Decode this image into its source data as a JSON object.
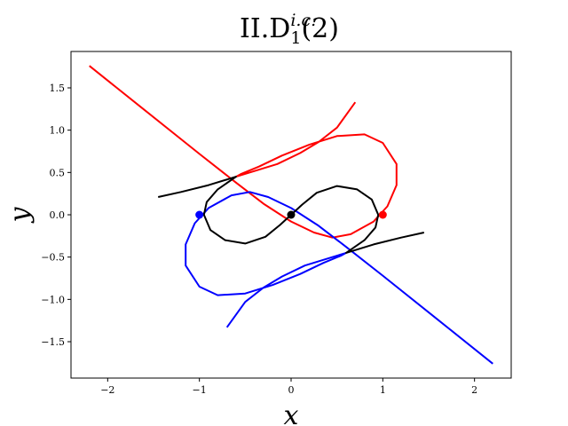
{
  "chart_data": {
    "type": "line",
    "title": {
      "prefix": "II.D",
      "subscript": "1",
      "superscript": "i.c.",
      "suffix": "(2)"
    },
    "xlabel": "x",
    "ylabel": "y",
    "xlim": [
      -2.4,
      2.4
    ],
    "ylim": [
      -1.93,
      1.93
    ],
    "xticks": [
      -2,
      -1,
      0,
      1,
      2
    ],
    "xtick_labels": [
      "−2",
      "−1",
      "0",
      "1",
      "2"
    ],
    "yticks": [
      -1.5,
      -1.0,
      -0.5,
      0.0,
      0.5,
      1.0,
      1.5
    ],
    "ytick_labels": [
      "−1.5",
      "−1.0",
      "−0.5",
      "0.0",
      "0.5",
      "1.0",
      "1.5"
    ],
    "grid": false,
    "series": [
      {
        "color": "#ff0000",
        "points": [
          [
            -2.2,
            1.76
          ],
          [
            -1.6,
            1.24
          ],
          [
            -1.0,
            0.72
          ],
          [
            -0.6,
            0.38
          ],
          [
            -0.3,
            0.13
          ],
          [
            0.0,
            -0.08
          ],
          [
            0.25,
            -0.21
          ],
          [
            0.45,
            -0.27
          ],
          [
            0.65,
            -0.23
          ],
          [
            0.9,
            -0.08
          ],
          [
            1.05,
            0.1
          ],
          [
            1.15,
            0.35
          ],
          [
            1.15,
            0.6
          ],
          [
            1.0,
            0.85
          ],
          [
            0.8,
            0.95
          ],
          [
            0.5,
            0.93
          ],
          [
            0.2,
            0.83
          ],
          [
            -0.1,
            0.7
          ],
          [
            -0.35,
            0.57
          ],
          [
            -0.55,
            0.48
          ],
          [
            -0.6,
            0.45
          ],
          [
            -0.45,
            0.5
          ],
          [
            -0.15,
            0.6
          ],
          [
            0.1,
            0.73
          ],
          [
            0.3,
            0.86
          ],
          [
            0.5,
            1.03
          ],
          [
            0.7,
            1.33
          ]
        ]
      },
      {
        "color": "#0000ff",
        "points": [
          [
            2.2,
            -1.76
          ],
          [
            1.6,
            -1.24
          ],
          [
            1.0,
            -0.72
          ],
          [
            0.6,
            -0.38
          ],
          [
            0.3,
            -0.13
          ],
          [
            0.0,
            0.08
          ],
          [
            -0.25,
            0.21
          ],
          [
            -0.45,
            0.27
          ],
          [
            -0.65,
            0.23
          ],
          [
            -0.9,
            0.08
          ],
          [
            -1.05,
            -0.1
          ],
          [
            -1.15,
            -0.35
          ],
          [
            -1.15,
            -0.6
          ],
          [
            -1.0,
            -0.85
          ],
          [
            -0.8,
            -0.95
          ],
          [
            -0.5,
            -0.93
          ],
          [
            -0.2,
            -0.83
          ],
          [
            0.1,
            -0.7
          ],
          [
            0.35,
            -0.57
          ],
          [
            0.55,
            -0.48
          ],
          [
            0.6,
            -0.45
          ],
          [
            0.45,
            -0.5
          ],
          [
            0.15,
            -0.6
          ],
          [
            -0.1,
            -0.73
          ],
          [
            -0.3,
            -0.86
          ],
          [
            -0.5,
            -1.03
          ],
          [
            -0.7,
            -1.33
          ]
        ]
      },
      {
        "color": "#000000",
        "points": [
          [
            -1.45,
            0.21
          ],
          [
            -1.2,
            0.27
          ],
          [
            -0.9,
            0.35
          ],
          [
            -0.6,
            0.45
          ],
          [
            -0.8,
            0.3
          ],
          [
            -0.92,
            0.15
          ],
          [
            -0.95,
            0.0
          ],
          [
            -0.88,
            -0.18
          ],
          [
            -0.72,
            -0.3
          ],
          [
            -0.5,
            -0.34
          ],
          [
            -0.28,
            -0.26
          ],
          [
            -0.12,
            -0.12
          ],
          [
            0.0,
            0.0
          ],
          [
            0.12,
            0.12
          ],
          [
            0.28,
            0.26
          ],
          [
            0.5,
            0.34
          ],
          [
            0.72,
            0.3
          ],
          [
            0.88,
            0.18
          ],
          [
            0.95,
            0.0
          ],
          [
            0.92,
            -0.15
          ],
          [
            0.8,
            -0.3
          ],
          [
            0.6,
            -0.45
          ],
          [
            0.9,
            -0.35
          ],
          [
            1.2,
            -0.27
          ],
          [
            1.45,
            -0.21
          ]
        ]
      }
    ],
    "markers": [
      {
        "x": 1.0,
        "y": 0.0,
        "color": "#ff0000"
      },
      {
        "x": -1.0,
        "y": 0.0,
        "color": "#0000ff"
      },
      {
        "x": 0.0,
        "y": 0.0,
        "color": "#000000"
      }
    ]
  }
}
